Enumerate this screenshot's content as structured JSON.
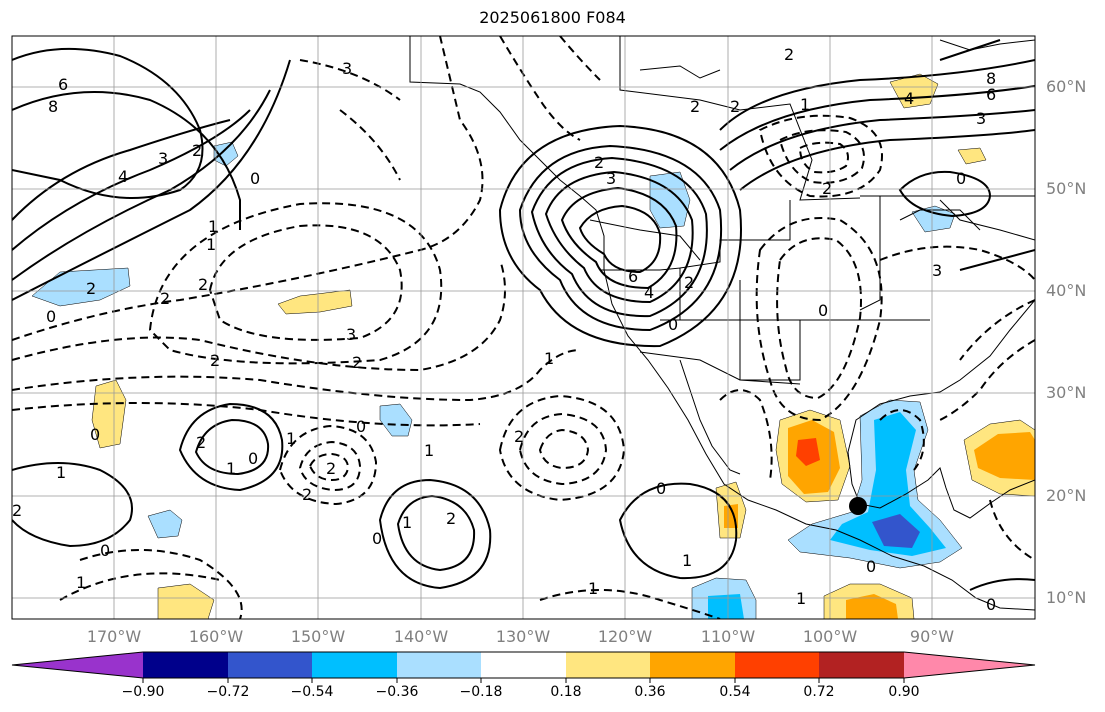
{
  "title": "2025061800 F084",
  "map": {
    "lat_labels": [
      "60°N",
      "50°N",
      "40°N",
      "30°N",
      "20°N",
      "10°N"
    ],
    "lon_labels": [
      "170°W",
      "160°W",
      "150°W",
      "140°W",
      "130°W",
      "120°W",
      "110°W",
      "100°W",
      "90°W"
    ]
  },
  "contour_labels": [
    "6",
    "8",
    "4",
    "3",
    "2",
    "2",
    "1",
    "0",
    "2",
    "2",
    "0",
    "3",
    "1",
    "2",
    "1",
    "2",
    "1",
    "2",
    "0",
    "2",
    "1",
    "2",
    "2",
    "3",
    "2",
    "4",
    "6",
    "0",
    "2",
    "2",
    "2",
    "0",
    "3",
    "1",
    "0",
    "2",
    "0",
    "2",
    "1",
    "0",
    "1",
    "1",
    "0",
    "1",
    "1",
    "8",
    "6",
    "4",
    "3",
    "2",
    "0",
    "3",
    "2",
    "1",
    "0",
    "0",
    "0",
    "1"
  ],
  "colorbar": {
    "ticks": [
      "−0.90",
      "−0.72",
      "−0.54",
      "−0.36",
      "−0.18",
      "0.18",
      "0.36",
      "0.54",
      "0.72",
      "0.90"
    ],
    "colors": [
      "#9933cc",
      "#00008b",
      "#3355cc",
      "#00bfff",
      "#aadfff",
      "#ffffff",
      "#ffe680",
      "#ffa500",
      "#ff4000",
      "#b22222",
      "#ff88aa"
    ]
  }
}
